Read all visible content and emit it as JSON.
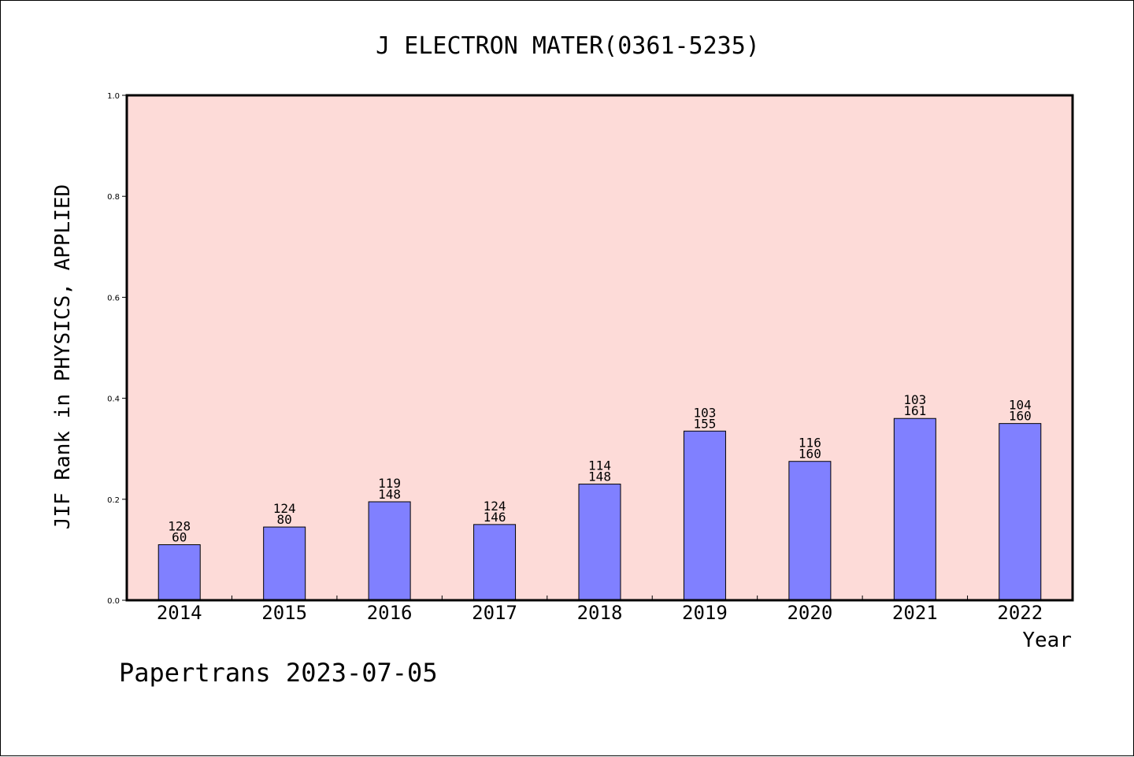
{
  "chart_data": {
    "type": "bar",
    "title": "J ELECTRON MATER(0361-5235)",
    "xlabel": "Year",
    "ylabel": "JIF Rank in PHYSICS, APPLIED",
    "ylim": [
      0.0,
      1.0
    ],
    "yticks": [
      "0.0",
      "0.2",
      "0.4",
      "0.6",
      "0.8",
      "1.0"
    ],
    "categories": [
      "2014",
      "2015",
      "2016",
      "2017",
      "2018",
      "2019",
      "2020",
      "2021",
      "2022"
    ],
    "values": [
      0.11,
      0.145,
      0.195,
      0.15,
      0.23,
      0.335,
      0.275,
      0.36,
      0.35
    ],
    "labels_top": [
      "128",
      "124",
      "119",
      "124",
      "114",
      "103",
      "116",
      "103",
      "104"
    ],
    "labels_bottom": [
      "60",
      "80",
      "148",
      "146",
      "148",
      "155",
      "160",
      "161",
      "160"
    ],
    "colors": {
      "plot_bg": "#fddbd8",
      "bar": "#8080ff",
      "axis": "#000000"
    },
    "grid": false
  },
  "footer": "Papertrans 2023-07-05"
}
